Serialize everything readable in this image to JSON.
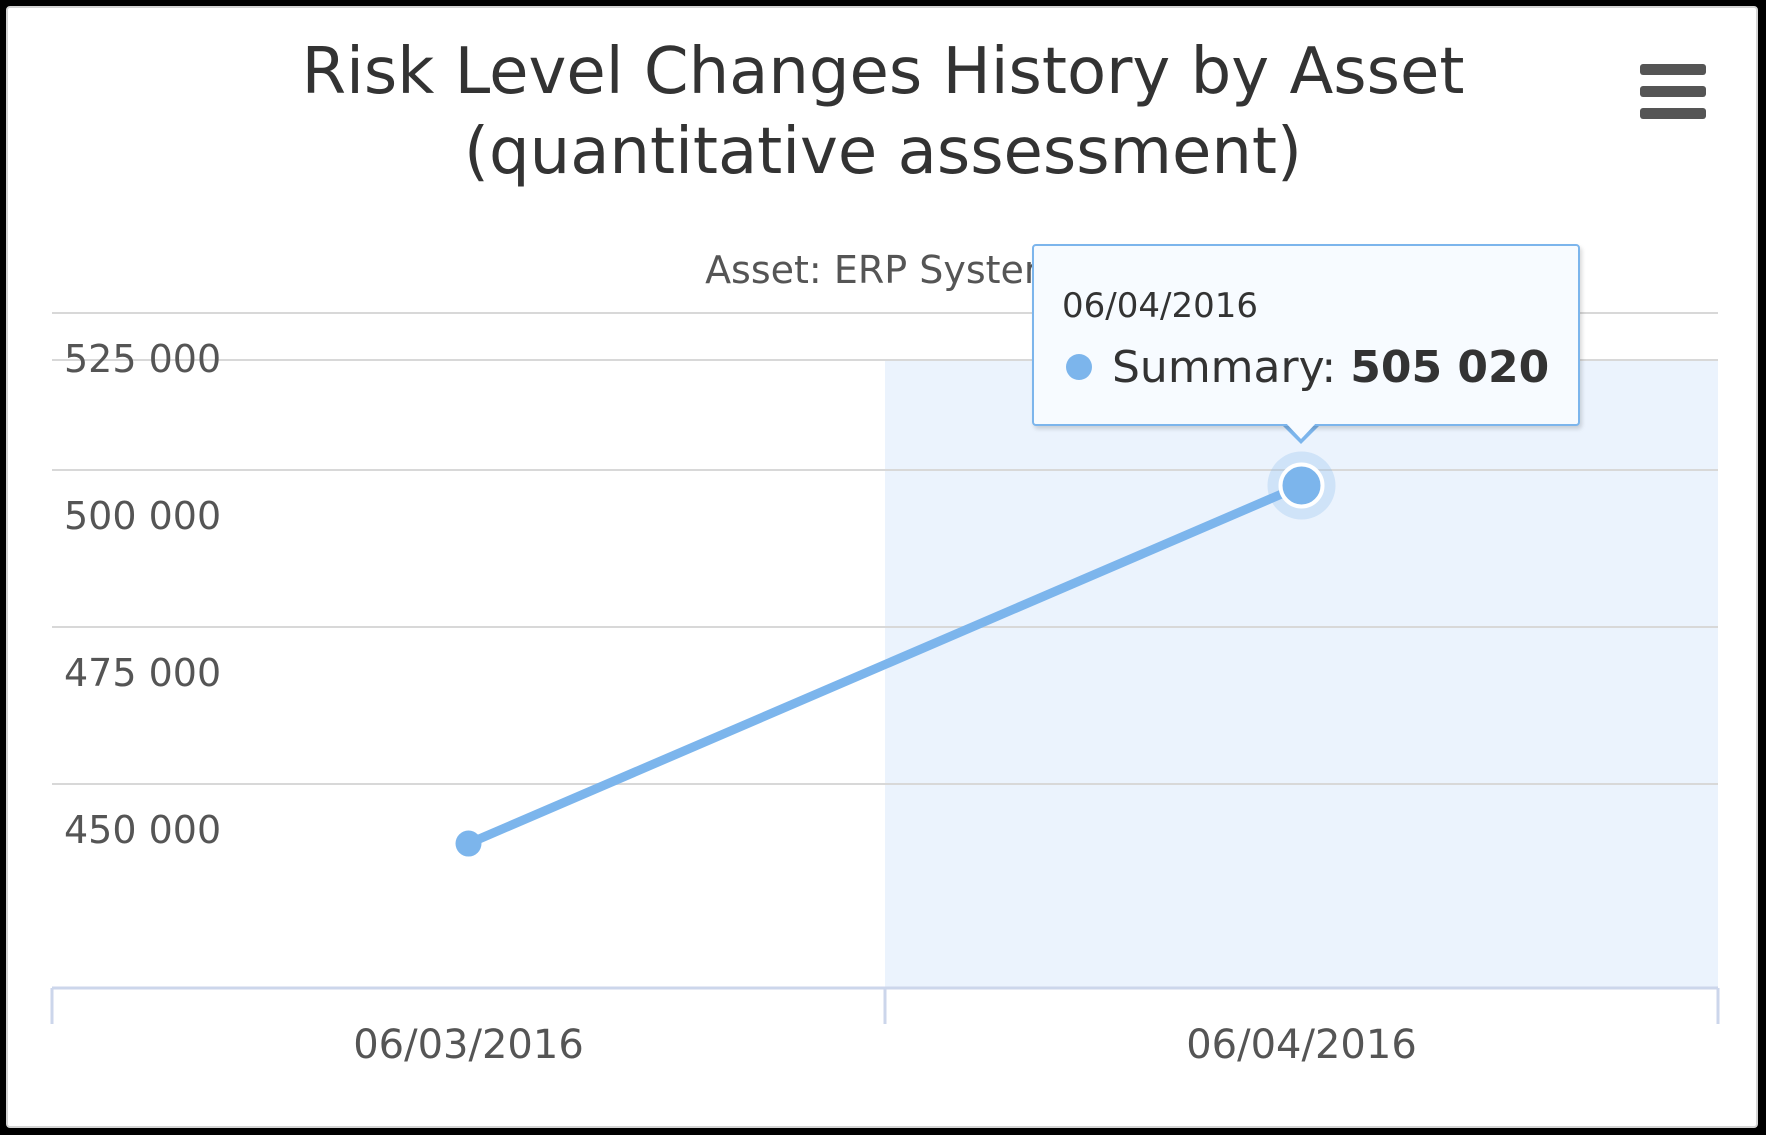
{
  "menu": {
    "icon": "hamburger-menu-icon"
  },
  "tooltip": {
    "date": "06/04/2016",
    "series_label": "Summary:",
    "value_label": "505 020",
    "marker_color": "#7cb5ec"
  },
  "chart_data": {
    "type": "line",
    "title": "Risk Level Changes History by Asset",
    "title_line2": "(quantitative assessment)",
    "subtitle": "Asset: ERP System",
    "categories": [
      "06/03/2016",
      "06/04/2016"
    ],
    "series": [
      {
        "name": "Summary",
        "values": [
          448000,
          505020
        ],
        "color": "#7cb5ec"
      }
    ],
    "y_ticks": [
      450000,
      475000,
      500000,
      525000
    ],
    "y_tick_labels": [
      "450 000",
      "475 000",
      "500 000",
      "525 000"
    ],
    "ylim": [
      425000,
      525000
    ],
    "grid": true,
    "hovered_category": "06/04/2016",
    "hover_band_color": "#ebf3fd"
  }
}
